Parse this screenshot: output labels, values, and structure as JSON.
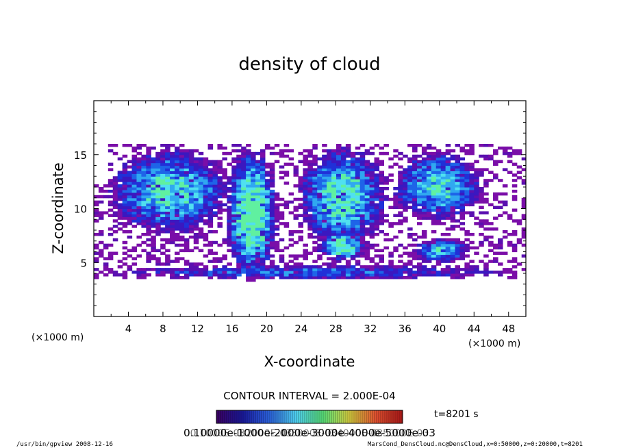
{
  "chart_data": {
    "type": "heatmap",
    "title": "density of cloud",
    "xlabel": "X-coordinate",
    "ylabel": "Z-coordinate",
    "x_unit_label": "(×1000 m)",
    "y_unit_label": "(×1000 m)",
    "xlim": [
      0,
      50
    ],
    "ylim": [
      0,
      20
    ],
    "x_ticks": [
      4,
      8,
      12,
      16,
      20,
      24,
      28,
      32,
      36,
      40,
      44,
      48
    ],
    "x_tick_labels": [
      "4",
      "8",
      "12",
      "16",
      "20",
      "24",
      "28",
      "32",
      "36",
      "40",
      "44",
      "48"
    ],
    "y_ticks": [
      5,
      10,
      15
    ],
    "y_tick_labels": [
      "5",
      "10",
      "15"
    ],
    "contour_interval_text": "CONTOUR INTERVAL = 2.000E-04",
    "time_text": "t=8201 s",
    "colorbar": {
      "min": 0.0001,
      "max": 0.0005,
      "tick_labels": [
        "0.1000E-03",
        "0.2000E-03",
        "0.3000E-03",
        "0.4000E-03",
        "0.5000E-03"
      ],
      "overlaid_text": "0.10000e-1000e-2000e-3000e-4000e-5000e-03",
      "colors": [
        "#3a0060",
        "#1a1aa0",
        "#2c64e0",
        "#4fd0f0",
        "#58e07a",
        "#d8d040",
        "#e05030",
        "#b01818"
      ]
    },
    "fill_color": "#7a0ea8",
    "blobs": [
      {
        "x": 8.5,
        "z": 11.5,
        "w": 7.5,
        "h": 4.2,
        "density": 0.6
      },
      {
        "x": 18.0,
        "z": 9.5,
        "w": 3.2,
        "h": 6.5,
        "density": 1.0
      },
      {
        "x": 28.5,
        "z": 11.0,
        "w": 5.5,
        "h": 5.0,
        "density": 0.7
      },
      {
        "x": 39.5,
        "z": 12.0,
        "w": 5.5,
        "h": 3.4,
        "density": 0.6
      },
      {
        "x": 28.5,
        "z": 6.5,
        "w": 3.0,
        "h": 1.6,
        "density": 0.8
      },
      {
        "x": 40.0,
        "z": 6.0,
        "w": 3.5,
        "h": 1.2,
        "density": 0.5
      },
      {
        "x": 25.0,
        "z": 4.0,
        "w": 25.0,
        "h": 0.7,
        "density": 0.1
      }
    ]
  },
  "footer": {
    "left_text": "/usr/bin/gpview  2008-12-16",
    "right_text": "MarsCond_DensCloud.nc@DensCloud,x=0:50000,z=0:20000,t=8201"
  }
}
